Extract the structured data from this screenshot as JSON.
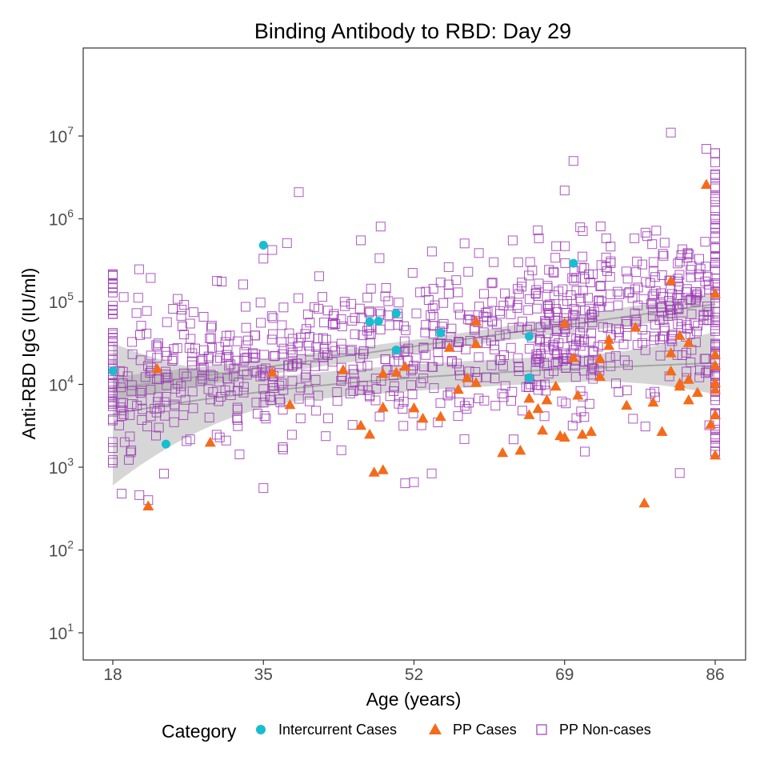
{
  "chart_data": {
    "type": "scatter",
    "title": "Binding Antibody to RBD: Day 29",
    "xlabel": "Age (years)",
    "ylabel": "Anti-RBD IgG (IU/ml)",
    "xlim": [
      18,
      86
    ],
    "ylim_log10": [
      0.6,
      8.05
    ],
    "y_scale": "log10",
    "x_ticks": [
      {
        "value": 18,
        "label": "18"
      },
      {
        "value": 35,
        "label": "35"
      },
      {
        "value": 52,
        "label": "52"
      },
      {
        "value": 69,
        "label": "69"
      },
      {
        "value": 86,
        "label": "86"
      }
    ],
    "y_ticks": [
      {
        "value": 1,
        "base": "10",
        "exp": "1"
      },
      {
        "value": 2,
        "base": "10",
        "exp": "2"
      },
      {
        "value": 3,
        "base": "10",
        "exp": "3"
      },
      {
        "value": 4,
        "base": "10",
        "exp": "4"
      },
      {
        "value": 5,
        "base": "10",
        "exp": "5"
      },
      {
        "value": 6,
        "base": "10",
        "exp": "6"
      },
      {
        "value": 7,
        "base": "10",
        "exp": "7"
      }
    ],
    "grid": false,
    "legend": {
      "title": "Category",
      "placement": "bottom",
      "entries": [
        {
          "name": "Intercurrent Cases",
          "shape": "circle",
          "color": "#17becf"
        },
        {
          "name": "PP Cases",
          "shape": "triangle",
          "color": "#f46b1b"
        },
        {
          "name": "PP Non-cases",
          "shape": "open-square",
          "color": "#9c3cb5"
        }
      ]
    },
    "series": [
      {
        "name": "Intercurrent Cases",
        "shape": "circle",
        "color": "#17becf",
        "points": [
          [
            18,
            14500
          ],
          [
            24,
            1900
          ],
          [
            35,
            480000
          ],
          [
            47,
            57000
          ],
          [
            48,
            58000
          ],
          [
            50,
            26000
          ],
          [
            50,
            72000
          ],
          [
            55,
            42000
          ],
          [
            65,
            38000
          ],
          [
            65,
            12000
          ],
          [
            70,
            290000
          ]
        ]
      },
      {
        "name": "PP Cases",
        "shape": "triangle",
        "color": "#f46b1b",
        "points": [
          [
            22,
            340
          ],
          [
            23,
            15500
          ],
          [
            29,
            2000
          ],
          [
            36,
            14000
          ],
          [
            38,
            5700
          ],
          [
            44,
            15000
          ],
          [
            46,
            3200
          ],
          [
            47,
            2500
          ],
          [
            47.5,
            870
          ],
          [
            48.5,
            930
          ],
          [
            48.5,
            13500
          ],
          [
            48.5,
            5300
          ],
          [
            50,
            14000
          ],
          [
            51,
            16500
          ],
          [
            52,
            5200
          ],
          [
            53,
            3900
          ],
          [
            55,
            4100
          ],
          [
            56,
            28000
          ],
          [
            57,
            8700
          ],
          [
            58,
            12000
          ],
          [
            59,
            10500
          ],
          [
            59,
            31000
          ],
          [
            59,
            58000
          ],
          [
            62,
            1500
          ],
          [
            64,
            1600
          ],
          [
            65,
            4300
          ],
          [
            65,
            6800
          ],
          [
            66,
            5100
          ],
          [
            66.5,
            2800
          ],
          [
            67,
            6500
          ],
          [
            68,
            9500
          ],
          [
            68.5,
            2400
          ],
          [
            69,
            55000
          ],
          [
            69,
            2300
          ],
          [
            70,
            21000
          ],
          [
            70.5,
            7400
          ],
          [
            71,
            2500
          ],
          [
            72,
            2700
          ],
          [
            73,
            12500
          ],
          [
            73,
            20500
          ],
          [
            74,
            29500
          ],
          [
            74,
            35000
          ],
          [
            76,
            5600
          ],
          [
            77,
            49000
          ],
          [
            78,
            370
          ],
          [
            79,
            6100
          ],
          [
            80,
            2700
          ],
          [
            81,
            14500
          ],
          [
            81,
            24000
          ],
          [
            81,
            180000
          ],
          [
            82,
            9500
          ],
          [
            82,
            10300
          ],
          [
            82,
            39000
          ],
          [
            83,
            32000
          ],
          [
            83,
            11500
          ],
          [
            83,
            6500
          ],
          [
            84,
            8000
          ],
          [
            85,
            2600000
          ],
          [
            85.5,
            3300
          ],
          [
            86,
            1400
          ],
          [
            86,
            4300
          ],
          [
            86,
            8700
          ],
          [
            86,
            10500
          ],
          [
            86,
            17000
          ],
          [
            86,
            23000
          ],
          [
            86,
            125000
          ]
        ]
      }
    ]
  }
}
